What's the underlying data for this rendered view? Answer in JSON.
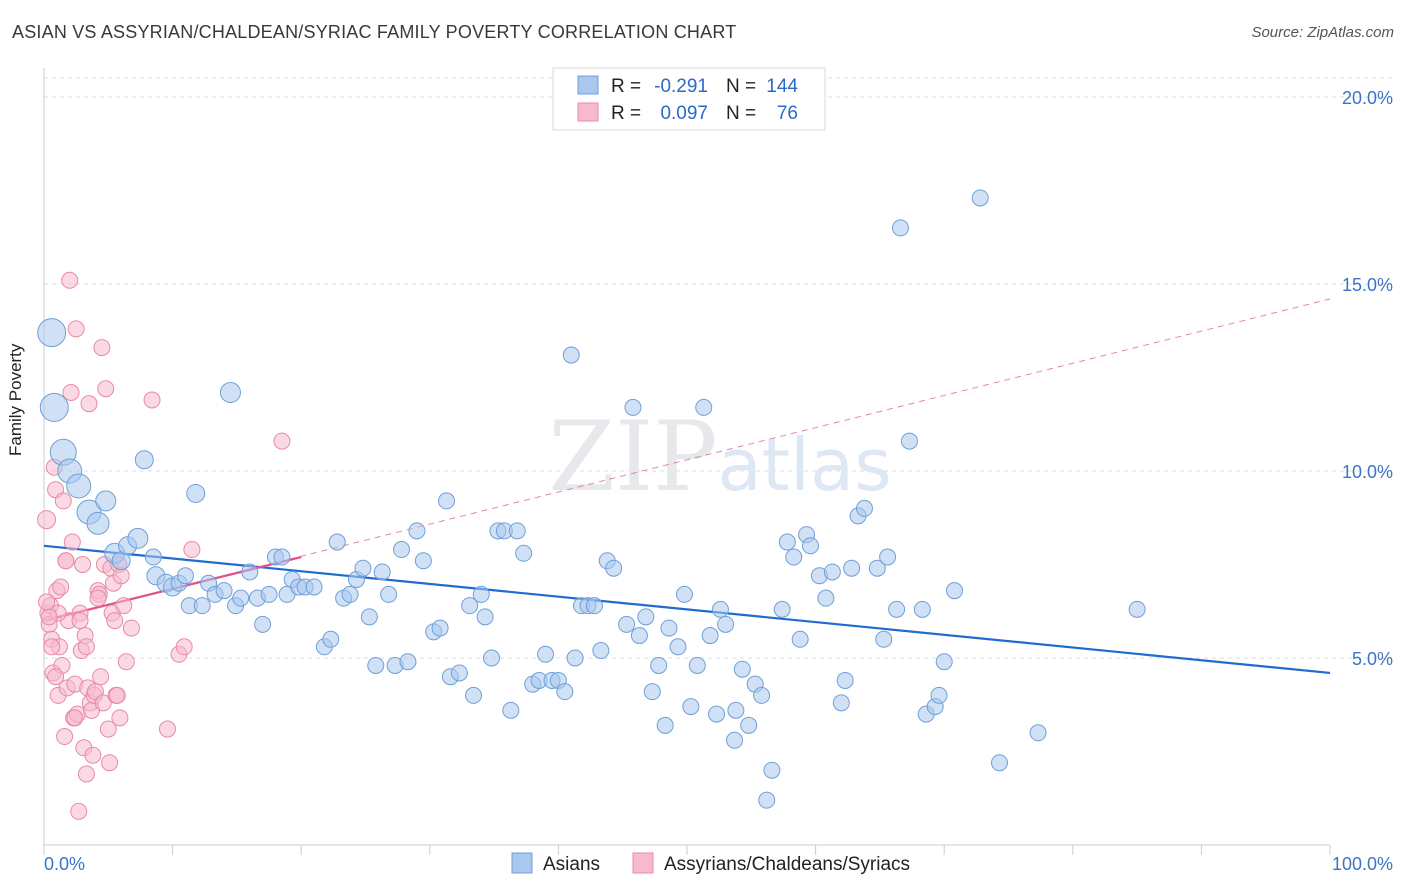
{
  "chart_data": {
    "type": "scatter",
    "title": "ASIAN VS ASSYRIAN/CHALDEAN/SYRIAC FAMILY POVERTY CORRELATION CHART",
    "source": "Source: ZipAtlas.com",
    "xlabel": "",
    "ylabel": "Family Poverty",
    "xlim": [
      0,
      100
    ],
    "ylim": [
      0,
      21
    ],
    "x_tick_labels": [
      "0.0%",
      "100.0%"
    ],
    "y_ticks": [
      5,
      10,
      15,
      20
    ],
    "y_tick_labels": [
      "5.0%",
      "10.0%",
      "15.0%",
      "20.0%"
    ],
    "watermark": "ZIPatlas",
    "colors": {
      "asian_fill": "#a9c8ee",
      "asian_stroke": "#6f9fd8",
      "asian_line": "#1f6bd0",
      "assyrian_fill": "#f7b9cd",
      "assyrian_stroke": "#e88aa8",
      "assyrian_line": "#e0508a",
      "value_text": "#2a69c9",
      "tick_text": "#3b74c6"
    },
    "legend_stats": [
      {
        "r_label": "R =",
        "r_value": "-0.291",
        "n_label": "N =",
        "n_value": "144"
      },
      {
        "r_label": "R =",
        "r_value": "0.097",
        "n_label": "N =",
        "n_value": "76"
      }
    ],
    "series": [
      {
        "name": "Asians",
        "trend": {
          "x0": 0,
          "y0": 8.0,
          "x1": 100,
          "y1": 4.6
        },
        "points": [
          [
            0.6,
            13.7,
            14
          ],
          [
            0.8,
            11.7,
            14
          ],
          [
            1.5,
            10.5,
            13
          ],
          [
            2.0,
            10.0,
            12
          ],
          [
            2.7,
            9.6,
            12
          ],
          [
            3.5,
            8.9,
            12
          ],
          [
            4.2,
            8.6,
            11
          ],
          [
            4.8,
            9.2,
            10
          ],
          [
            5.5,
            7.8,
            10
          ],
          [
            6.0,
            7.6,
            9
          ],
          [
            6.5,
            8.0,
            9
          ],
          [
            7.3,
            8.2,
            10
          ],
          [
            7.8,
            10.3,
            9
          ],
          [
            8.5,
            7.7,
            8
          ],
          [
            8.7,
            7.2,
            9
          ],
          [
            9.5,
            7.0,
            9
          ],
          [
            10.0,
            6.9,
            9
          ],
          [
            10.5,
            7.0,
            8
          ],
          [
            11.0,
            7.2,
            8
          ],
          [
            11.3,
            6.4,
            8
          ],
          [
            11.8,
            9.4,
            9
          ],
          [
            12.3,
            6.4,
            8
          ],
          [
            12.8,
            7.0,
            8
          ],
          [
            13.3,
            6.7,
            8
          ],
          [
            14.0,
            6.8,
            8
          ],
          [
            14.5,
            12.1,
            10
          ],
          [
            14.9,
            6.4,
            8
          ],
          [
            15.3,
            6.6,
            8
          ],
          [
            16.0,
            7.3,
            8
          ],
          [
            16.6,
            6.6,
            8
          ],
          [
            17.0,
            5.9,
            8
          ],
          [
            17.5,
            6.7,
            8
          ],
          [
            18.0,
            7.7,
            8
          ],
          [
            18.5,
            7.7,
            8
          ],
          [
            18.9,
            6.7,
            8
          ],
          [
            19.3,
            7.1,
            8
          ],
          [
            19.8,
            6.9,
            8
          ],
          [
            20.3,
            6.9,
            8
          ],
          [
            21.0,
            6.9,
            8
          ],
          [
            21.8,
            5.3,
            8
          ],
          [
            22.3,
            5.5,
            8
          ],
          [
            22.8,
            8.1,
            8
          ],
          [
            23.3,
            6.6,
            8
          ],
          [
            23.8,
            6.7,
            8
          ],
          [
            24.3,
            7.1,
            8
          ],
          [
            24.8,
            7.4,
            8
          ],
          [
            25.3,
            6.1,
            8
          ],
          [
            25.8,
            4.8,
            8
          ],
          [
            26.3,
            7.3,
            8
          ],
          [
            26.8,
            6.7,
            8
          ],
          [
            27.3,
            4.8,
            8
          ],
          [
            27.8,
            7.9,
            8
          ],
          [
            28.3,
            4.9,
            8
          ],
          [
            29.0,
            8.4,
            8
          ],
          [
            29.5,
            7.6,
            8
          ],
          [
            30.3,
            5.7,
            8
          ],
          [
            30.8,
            5.8,
            8
          ],
          [
            31.3,
            9.2,
            8
          ],
          [
            31.6,
            4.5,
            8
          ],
          [
            32.3,
            4.6,
            8
          ],
          [
            33.1,
            6.4,
            8
          ],
          [
            33.4,
            4.0,
            8
          ],
          [
            34.0,
            6.7,
            8
          ],
          [
            34.3,
            6.1,
            8
          ],
          [
            34.8,
            5.0,
            8
          ],
          [
            35.3,
            8.4,
            8
          ],
          [
            35.8,
            8.4,
            8
          ],
          [
            36.3,
            3.6,
            8
          ],
          [
            36.8,
            8.4,
            8
          ],
          [
            37.3,
            7.8,
            8
          ],
          [
            38.0,
            4.3,
            8
          ],
          [
            38.5,
            4.4,
            8
          ],
          [
            39.0,
            5.1,
            8
          ],
          [
            39.5,
            4.4,
            8
          ],
          [
            40.0,
            4.4,
            8
          ],
          [
            40.5,
            4.1,
            8
          ],
          [
            41.0,
            13.1,
            8
          ],
          [
            41.3,
            5.0,
            8
          ],
          [
            41.8,
            6.4,
            8
          ],
          [
            42.3,
            6.4,
            8
          ],
          [
            42.8,
            6.4,
            8
          ],
          [
            43.3,
            5.2,
            8
          ],
          [
            43.8,
            7.6,
            8
          ],
          [
            44.3,
            7.4,
            8
          ],
          [
            45.3,
            5.9,
            8
          ],
          [
            45.8,
            11.7,
            8
          ],
          [
            46.3,
            5.6,
            8
          ],
          [
            46.8,
            6.1,
            8
          ],
          [
            47.3,
            4.1,
            8
          ],
          [
            47.8,
            4.8,
            8
          ],
          [
            48.3,
            3.2,
            8
          ],
          [
            48.6,
            5.8,
            8
          ],
          [
            49.3,
            5.3,
            8
          ],
          [
            49.8,
            6.7,
            8
          ],
          [
            50.3,
            3.7,
            8
          ],
          [
            50.8,
            4.8,
            8
          ],
          [
            51.3,
            11.7,
            8
          ],
          [
            51.8,
            5.6,
            8
          ],
          [
            52.3,
            3.5,
            8
          ],
          [
            52.6,
            6.3,
            8
          ],
          [
            53.0,
            5.9,
            8
          ],
          [
            53.7,
            2.8,
            8
          ],
          [
            53.8,
            3.6,
            8
          ],
          [
            54.3,
            4.7,
            8
          ],
          [
            54.8,
            3.2,
            8
          ],
          [
            55.3,
            4.3,
            8
          ],
          [
            55.8,
            4.0,
            8
          ],
          [
            56.2,
            1.2,
            8
          ],
          [
            56.6,
            2.0,
            8
          ],
          [
            57.4,
            6.3,
            8
          ],
          [
            57.8,
            8.1,
            8
          ],
          [
            58.3,
            7.7,
            8
          ],
          [
            58.8,
            5.5,
            8
          ],
          [
            59.3,
            8.3,
            8
          ],
          [
            59.6,
            8.0,
            8
          ],
          [
            60.3,
            7.2,
            8
          ],
          [
            60.8,
            6.6,
            8
          ],
          [
            61.3,
            7.3,
            8
          ],
          [
            62.0,
            3.8,
            8
          ],
          [
            62.3,
            4.4,
            8
          ],
          [
            62.8,
            7.4,
            8
          ],
          [
            63.3,
            8.8,
            8
          ],
          [
            63.8,
            9.0,
            8
          ],
          [
            64.8,
            7.4,
            8
          ],
          [
            65.3,
            5.5,
            8
          ],
          [
            65.6,
            7.7,
            8
          ],
          [
            66.3,
            6.3,
            8
          ],
          [
            66.6,
            16.5,
            8
          ],
          [
            67.3,
            10.8,
            8
          ],
          [
            68.3,
            6.3,
            8
          ],
          [
            68.6,
            3.5,
            8
          ],
          [
            69.3,
            3.7,
            8
          ],
          [
            69.6,
            4.0,
            8
          ],
          [
            70.0,
            4.9,
            8
          ],
          [
            70.8,
            6.8,
            8
          ],
          [
            72.8,
            17.3,
            8
          ],
          [
            74.3,
            2.2,
            8
          ],
          [
            77.3,
            3.0,
            8
          ],
          [
            85.0,
            6.3,
            8
          ]
        ]
      },
      {
        "name": "Assyrians/Chaldeans/Syriacs",
        "trend": {
          "x0": 0,
          "y0": 6.0,
          "x1": 20,
          "y1": 7.7
        },
        "trend_extended": {
          "x0": 0,
          "y0": 6.0,
          "x1": 100,
          "y1": 14.6
        },
        "points": [
          [
            0.2,
            8.7,
            9
          ],
          [
            0.3,
            6.2,
            8
          ],
          [
            0.4,
            5.9,
            8
          ],
          [
            0.5,
            6.4,
            8
          ],
          [
            0.6,
            5.5,
            8
          ],
          [
            0.7,
            4.6,
            8
          ],
          [
            0.8,
            10.1,
            8
          ],
          [
            0.9,
            9.5,
            8
          ],
          [
            1.0,
            6.8,
            8
          ],
          [
            1.1,
            4.0,
            8
          ],
          [
            1.2,
            5.3,
            8
          ],
          [
            1.3,
            6.9,
            8
          ],
          [
            1.4,
            4.8,
            8
          ],
          [
            1.5,
            9.2,
            8
          ],
          [
            1.6,
            2.9,
            8
          ],
          [
            1.7,
            7.6,
            8
          ],
          [
            1.8,
            4.2,
            8
          ],
          [
            1.9,
            6.0,
            8
          ],
          [
            2.0,
            15.1,
            8
          ],
          [
            2.1,
            12.1,
            8
          ],
          [
            2.2,
            8.1,
            8
          ],
          [
            2.3,
            3.4,
            8
          ],
          [
            2.4,
            4.3,
            8
          ],
          [
            2.5,
            13.8,
            8
          ],
          [
            2.6,
            3.5,
            8
          ],
          [
            2.7,
            0.9,
            8
          ],
          [
            2.8,
            6.2,
            8
          ],
          [
            2.9,
            5.2,
            8
          ],
          [
            3.0,
            7.5,
            8
          ],
          [
            3.1,
            2.6,
            8
          ],
          [
            3.2,
            5.6,
            8
          ],
          [
            3.3,
            1.9,
            8
          ],
          [
            3.4,
            4.2,
            8
          ],
          [
            3.5,
            11.8,
            8
          ],
          [
            3.6,
            3.8,
            8
          ],
          [
            3.7,
            3.6,
            8
          ],
          [
            3.8,
            2.4,
            8
          ],
          [
            3.9,
            4.0,
            8
          ],
          [
            4.0,
            4.1,
            8
          ],
          [
            4.2,
            6.8,
            8
          ],
          [
            4.3,
            6.7,
            8
          ],
          [
            4.4,
            4.5,
            8
          ],
          [
            4.5,
            13.3,
            8
          ],
          [
            4.6,
            3.8,
            8
          ],
          [
            4.7,
            7.5,
            8
          ],
          [
            4.8,
            12.2,
            8
          ],
          [
            5.0,
            3.1,
            8
          ],
          [
            5.1,
            2.2,
            8
          ],
          [
            5.2,
            7.4,
            8
          ],
          [
            5.3,
            6.2,
            8
          ],
          [
            5.4,
            7.0,
            8
          ],
          [
            5.5,
            6.0,
            8
          ],
          [
            5.6,
            4.0,
            8
          ],
          [
            5.8,
            7.5,
            8
          ],
          [
            5.9,
            3.4,
            8
          ],
          [
            6.0,
            7.2,
            8
          ],
          [
            6.2,
            6.4,
            8
          ],
          [
            6.4,
            4.9,
            8
          ],
          [
            6.8,
            5.8,
            8
          ],
          [
            8.4,
            11.9,
            8
          ],
          [
            9.6,
            3.1,
            8
          ],
          [
            10.5,
            5.1,
            8
          ],
          [
            10.9,
            5.3,
            8
          ],
          [
            11.5,
            7.9,
            8
          ],
          [
            18.5,
            10.8,
            8
          ],
          [
            1.1,
            6.2,
            8
          ],
          [
            2.8,
            6.0,
            8
          ],
          [
            0.9,
            4.5,
            8
          ],
          [
            0.4,
            6.1,
            8
          ],
          [
            3.3,
            5.3,
            8
          ],
          [
            4.2,
            6.6,
            8
          ],
          [
            1.7,
            7.6,
            8
          ],
          [
            2.4,
            3.4,
            8
          ],
          [
            0.6,
            5.3,
            8
          ],
          [
            5.7,
            4.0,
            8
          ],
          [
            0.2,
            6.5,
            8
          ]
        ]
      }
    ]
  }
}
